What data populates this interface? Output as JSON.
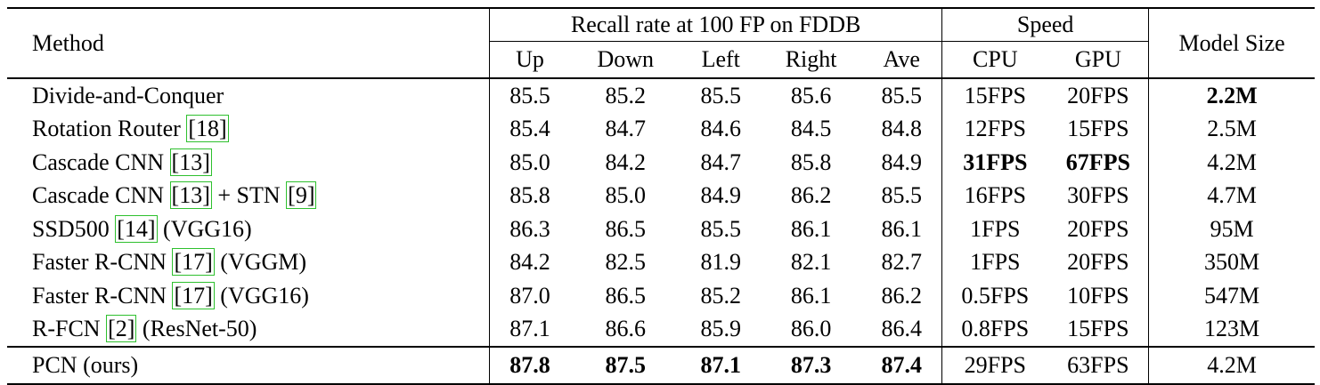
{
  "table": {
    "header": {
      "method": "Method",
      "recall_group": "Recall rate at 100 FP on FDDB",
      "speed_group": "Speed",
      "model_size": "Model Size",
      "recall_cols": [
        "Up",
        "Down",
        "Left",
        "Right",
        "Ave"
      ],
      "speed_cols": [
        "CPU",
        "GPU"
      ]
    },
    "rows": [
      {
        "name": "Divide-and-Conquer",
        "up": "85.5",
        "down": "85.2",
        "left": "85.5",
        "right": "85.6",
        "ave": "85.5",
        "cpu": "15FPS",
        "gpu": "20FPS",
        "size": "2.2M"
      },
      {
        "name": "Rotation Router ",
        "cite1": "18",
        "up": "85.4",
        "down": "84.7",
        "left": "84.6",
        "right": "84.5",
        "ave": "84.8",
        "cpu": "12FPS",
        "gpu": "15FPS",
        "size": "2.5M"
      },
      {
        "name": "Cascade CNN ",
        "cite1": "13",
        "up": "85.0",
        "down": "84.2",
        "left": "84.7",
        "right": "85.8",
        "ave": "84.9",
        "cpu": "31FPS",
        "gpu": "67FPS",
        "size": "4.2M"
      },
      {
        "name": "Cascade CNN ",
        "cite1": "13",
        "mid": " + STN ",
        "cite2": "9",
        "up": "85.8",
        "down": "85.0",
        "left": "84.9",
        "right": "86.2",
        "ave": "85.5",
        "cpu": "16FPS",
        "gpu": "30FPS",
        "size": "4.7M"
      },
      {
        "name": "SSD500 ",
        "cite1": "14",
        "suffix": " (VGG16)",
        "up": "86.3",
        "down": "86.5",
        "left": "85.5",
        "right": "86.1",
        "ave": "86.1",
        "cpu": "1FPS",
        "gpu": "20FPS",
        "size": "95M"
      },
      {
        "name": "Faster R-CNN ",
        "cite1": "17",
        "suffix": " (VGGM)",
        "up": "84.2",
        "down": "82.5",
        "left": "81.9",
        "right": "82.1",
        "ave": "82.7",
        "cpu": "1FPS",
        "gpu": "20FPS",
        "size": "350M"
      },
      {
        "name": "Faster R-CNN ",
        "cite1": "17",
        "suffix": " (VGG16)",
        "up": "87.0",
        "down": "86.5",
        "left": "85.2",
        "right": "86.1",
        "ave": "86.2",
        "cpu": "0.5FPS",
        "gpu": "10FPS",
        "size": "547M"
      },
      {
        "name": "R-FCN ",
        "cite1": "2",
        "suffix": " (ResNet-50)",
        "up": "87.1",
        "down": "86.6",
        "left": "85.9",
        "right": "86.0",
        "ave": "86.4",
        "cpu": "0.8FPS",
        "gpu": "15FPS",
        "size": "123M"
      },
      {
        "name": "PCN (ours)",
        "up": "87.8",
        "down": "87.5",
        "left": "87.1",
        "right": "87.3",
        "ave": "87.4",
        "cpu": "29FPS",
        "gpu": "63FPS",
        "size": "4.2M"
      }
    ]
  }
}
